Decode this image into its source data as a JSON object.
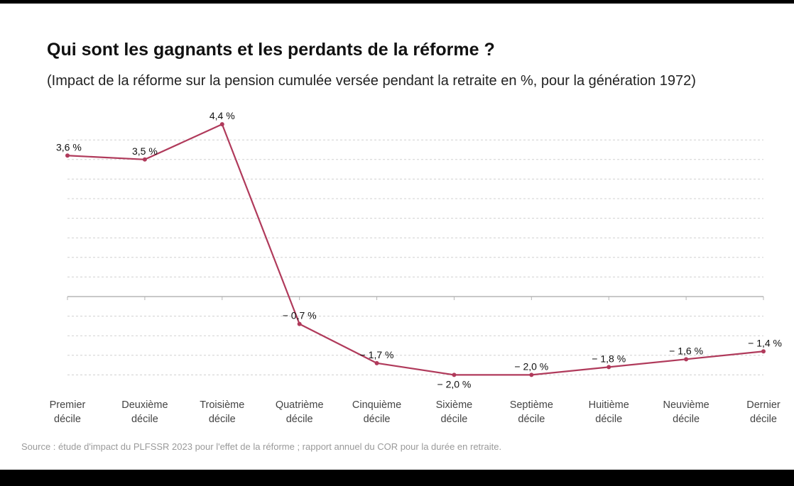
{
  "title": "Qui sont les gagnants et les perdants de la réforme ?",
  "subtitle": "(Impact de la réforme sur la pension cumulée versée pendant la retraite en %, pour la génération 1972)",
  "source": "Source : étude d'impact du PLFSSR 2023 pour l'effet de la réforme ; rapport annuel du COR pour la durée en retraite.",
  "colors": {
    "line": "#b03a5b",
    "grid": "#d0d0d0",
    "axis": "#b5b5b5"
  },
  "chart_data": {
    "type": "line",
    "categories": [
      [
        "Premier",
        "décile"
      ],
      [
        "Deuxième",
        "décile"
      ],
      [
        "Troisième",
        "décile"
      ],
      [
        "Quatrième",
        "décile"
      ],
      [
        "Cinquième",
        "décile"
      ],
      [
        "Sixième",
        "décile"
      ],
      [
        "Septième",
        "décile"
      ],
      [
        "Huitième",
        "décile"
      ],
      [
        "Neuvième",
        "décile"
      ],
      [
        "Dernier",
        "décile"
      ]
    ],
    "values": [
      3.6,
      3.5,
      4.4,
      -0.7,
      -1.7,
      -2.0,
      -2.0,
      -1.8,
      -1.6,
      -1.4
    ],
    "labels": [
      "3,6 %",
      "3,5 %",
      "4,4 %",
      "− 0,7 %",
      "− 1,7 %",
      "− 2,0 %",
      "− 2,0 %",
      "− 1,8 %",
      "− 1,6 %",
      "− 1,4 %"
    ],
    "label_position": [
      "above",
      "above",
      "above",
      "above",
      "above",
      "below",
      "above",
      "above",
      "above",
      "above"
    ],
    "ylim": [
      -2.0,
      4.4
    ],
    "grid": true,
    "xlabel": "",
    "ylabel": ""
  }
}
